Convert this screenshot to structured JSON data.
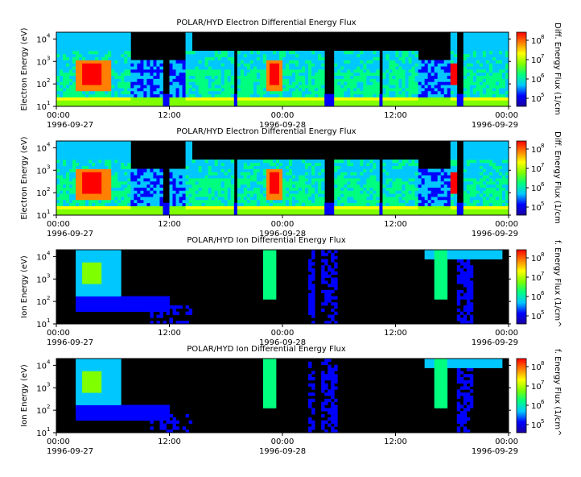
{
  "chart_data": [
    {
      "type": "heatmap",
      "title": "POLAR/HYD  Electron Differential Energy Flux",
      "ylabel": "Electron Energy (eV)",
      "colorbar_label": "Diff. Energy Flux (1/cm",
      "y_scale": "log",
      "ylim": [
        10,
        20000
      ],
      "y_ticks": [
        {
          "exp": "1",
          "label": "10"
        },
        {
          "exp": "2",
          "label": "10"
        },
        {
          "exp": "3",
          "label": "10"
        },
        {
          "exp": "4",
          "label": "10"
        }
      ],
      "cbar_ticks": [
        {
          "exp": "5",
          "label": "10"
        },
        {
          "exp": "6",
          "label": "10"
        },
        {
          "exp": "7",
          "label": "10"
        },
        {
          "exp": "8",
          "label": "10"
        }
      ],
      "x_ticks": [
        {
          "time": "00:00",
          "date": "1996-09-27"
        },
        {
          "time": "12:00",
          "date": ""
        },
        {
          "time": "00:00",
          "date": "1996-09-28"
        },
        {
          "time": "12:00",
          "date": ""
        },
        {
          "time": "00:00",
          "date": "1996-09-29"
        }
      ]
    },
    {
      "type": "heatmap",
      "title": "POLAR/HYD  Electron Differential Energy Flux",
      "ylabel": "Electron Energy (eV)",
      "colorbar_label": "Diff. Energy Flux (1/cm",
      "y_scale": "log",
      "ylim": [
        10,
        20000
      ],
      "y_ticks": [
        {
          "exp": "1",
          "label": "10"
        },
        {
          "exp": "2",
          "label": "10"
        },
        {
          "exp": "3",
          "label": "10"
        },
        {
          "exp": "4",
          "label": "10"
        }
      ],
      "cbar_ticks": [
        {
          "exp": "5",
          "label": "10"
        },
        {
          "exp": "6",
          "label": "10"
        },
        {
          "exp": "7",
          "label": "10"
        },
        {
          "exp": "8",
          "label": "10"
        }
      ],
      "x_ticks": [
        {
          "time": "00:00",
          "date": "1996-09-27"
        },
        {
          "time": "12:00",
          "date": ""
        },
        {
          "time": "00:00",
          "date": "1996-09-28"
        },
        {
          "time": "12:00",
          "date": ""
        },
        {
          "time": "00:00",
          "date": "1996-09-29"
        }
      ]
    },
    {
      "type": "heatmap",
      "title": "POLAR/HYD  Ion Differential Energy Flux",
      "ylabel": "Ion Energy (eV)",
      "colorbar_label": "f. Energy Flux (1/cm^",
      "y_scale": "log",
      "ylim": [
        10,
        20000
      ],
      "y_ticks": [
        {
          "exp": "1",
          "label": "10"
        },
        {
          "exp": "2",
          "label": "10"
        },
        {
          "exp": "3",
          "label": "10"
        },
        {
          "exp": "4",
          "label": "10"
        }
      ],
      "cbar_ticks": [
        {
          "exp": "5",
          "label": "10"
        },
        {
          "exp": "6",
          "label": "10"
        },
        {
          "exp": "7",
          "label": "10"
        },
        {
          "exp": "8",
          "label": "10"
        }
      ],
      "x_ticks": [
        {
          "time": "00:00",
          "date": "1996-09-27"
        },
        {
          "time": "12:00",
          "date": ""
        },
        {
          "time": "00:00",
          "date": "1996-09-28"
        },
        {
          "time": "12:00",
          "date": ""
        },
        {
          "time": "00:00",
          "date": "1996-09-29"
        }
      ]
    },
    {
      "type": "heatmap",
      "title": "POLAR/HYD  Ion Differential Energy Flux",
      "ylabel": "Ion Energy (eV)",
      "colorbar_label": "f. Energy Flux (1/cm^",
      "y_scale": "log",
      "ylim": [
        10,
        20000
      ],
      "y_ticks": [
        {
          "exp": "1",
          "label": "10"
        },
        {
          "exp": "2",
          "label": "10"
        },
        {
          "exp": "3",
          "label": "10"
        },
        {
          "exp": "4",
          "label": "10"
        }
      ],
      "cbar_ticks": [
        {
          "exp": "5",
          "label": "10"
        },
        {
          "exp": "6",
          "label": "10"
        },
        {
          "exp": "7",
          "label": "10"
        },
        {
          "exp": "8",
          "label": "10"
        }
      ],
      "x_ticks": [
        {
          "time": "00:00",
          "date": "1996-09-27"
        },
        {
          "time": "12:00",
          "date": ""
        },
        {
          "time": "00:00",
          "date": "1996-09-28"
        },
        {
          "time": "12:00",
          "date": ""
        },
        {
          "time": "00:00",
          "date": "1996-09-29"
        }
      ]
    }
  ],
  "colormap": [
    "#1a00a0",
    "#0000ff",
    "#00c8ff",
    "#00ff7f",
    "#7fff00",
    "#ffff00",
    "#ff8000",
    "#ff0000"
  ]
}
